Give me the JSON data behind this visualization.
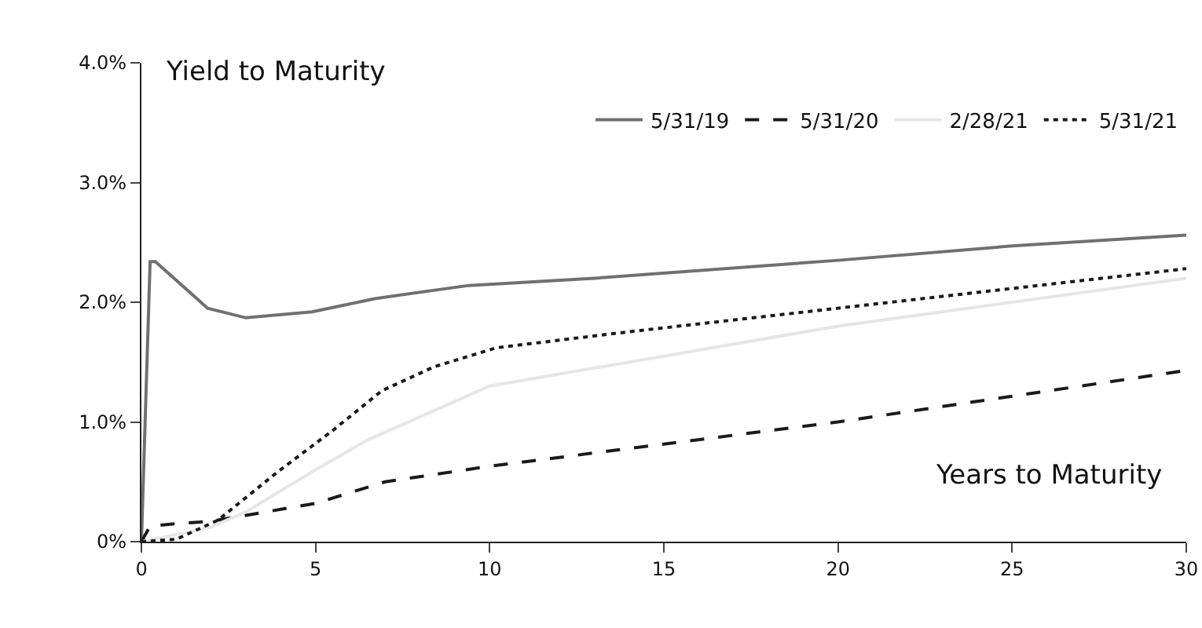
{
  "chart_data": {
    "type": "line",
    "title": "Yield to Maturity",
    "xlabel": "Years to Maturity",
    "xlim": [
      0,
      30
    ],
    "xticks": [
      0,
      5,
      10,
      15,
      20,
      25,
      30
    ],
    "ylim": [
      0,
      4
    ],
    "yticks": [
      {
        "value": 0,
        "label": "0%"
      },
      {
        "value": 1,
        "label": "1.0%"
      },
      {
        "value": 2,
        "label": "2.0%"
      },
      {
        "value": 3,
        "label": "3.0%"
      },
      {
        "value": 4,
        "label": "4.0%"
      }
    ],
    "grid": false,
    "legend": "top right",
    "series": [
      {
        "name": "5/31/19",
        "color": "#707070",
        "line_style": "solid",
        "x": [
          0,
          0.25,
          0.4,
          1.9,
          3,
          4.9,
          6.7,
          9.4,
          13,
          20,
          25,
          30
        ],
        "values": [
          0,
          2.34,
          2.34,
          1.95,
          1.87,
          1.92,
          2.03,
          2.14,
          2.2,
          2.35,
          2.47,
          2.56
        ]
      },
      {
        "name": "5/31/20",
        "color": "#1a1a1a",
        "line_style": "dashed",
        "x": [
          0,
          0.25,
          1,
          2,
          3,
          5,
          7,
          10,
          20,
          30
        ],
        "values": [
          0,
          0.13,
          0.15,
          0.17,
          0.22,
          0.32,
          0.5,
          0.63,
          1.0,
          1.43
        ]
      },
      {
        "name": "2/28/21",
        "color": "#e6e6e6",
        "line_style": "solid",
        "x": [
          0,
          1,
          2,
          3,
          5,
          6.5,
          10,
          20,
          30
        ],
        "values": [
          0,
          0.06,
          0.12,
          0.25,
          0.6,
          0.85,
          1.3,
          1.8,
          2.2
        ]
      },
      {
        "name": "5/31/21",
        "color": "#1a1a1a",
        "line_style": "dotted",
        "x": [
          0,
          1,
          2.2,
          3.9,
          5.5,
          6.9,
          8.4,
          10.2,
          13.9,
          20,
          30
        ],
        "values": [
          0,
          0.02,
          0.18,
          0.58,
          0.93,
          1.26,
          1.46,
          1.62,
          1.75,
          1.95,
          2.28
        ]
      }
    ]
  }
}
